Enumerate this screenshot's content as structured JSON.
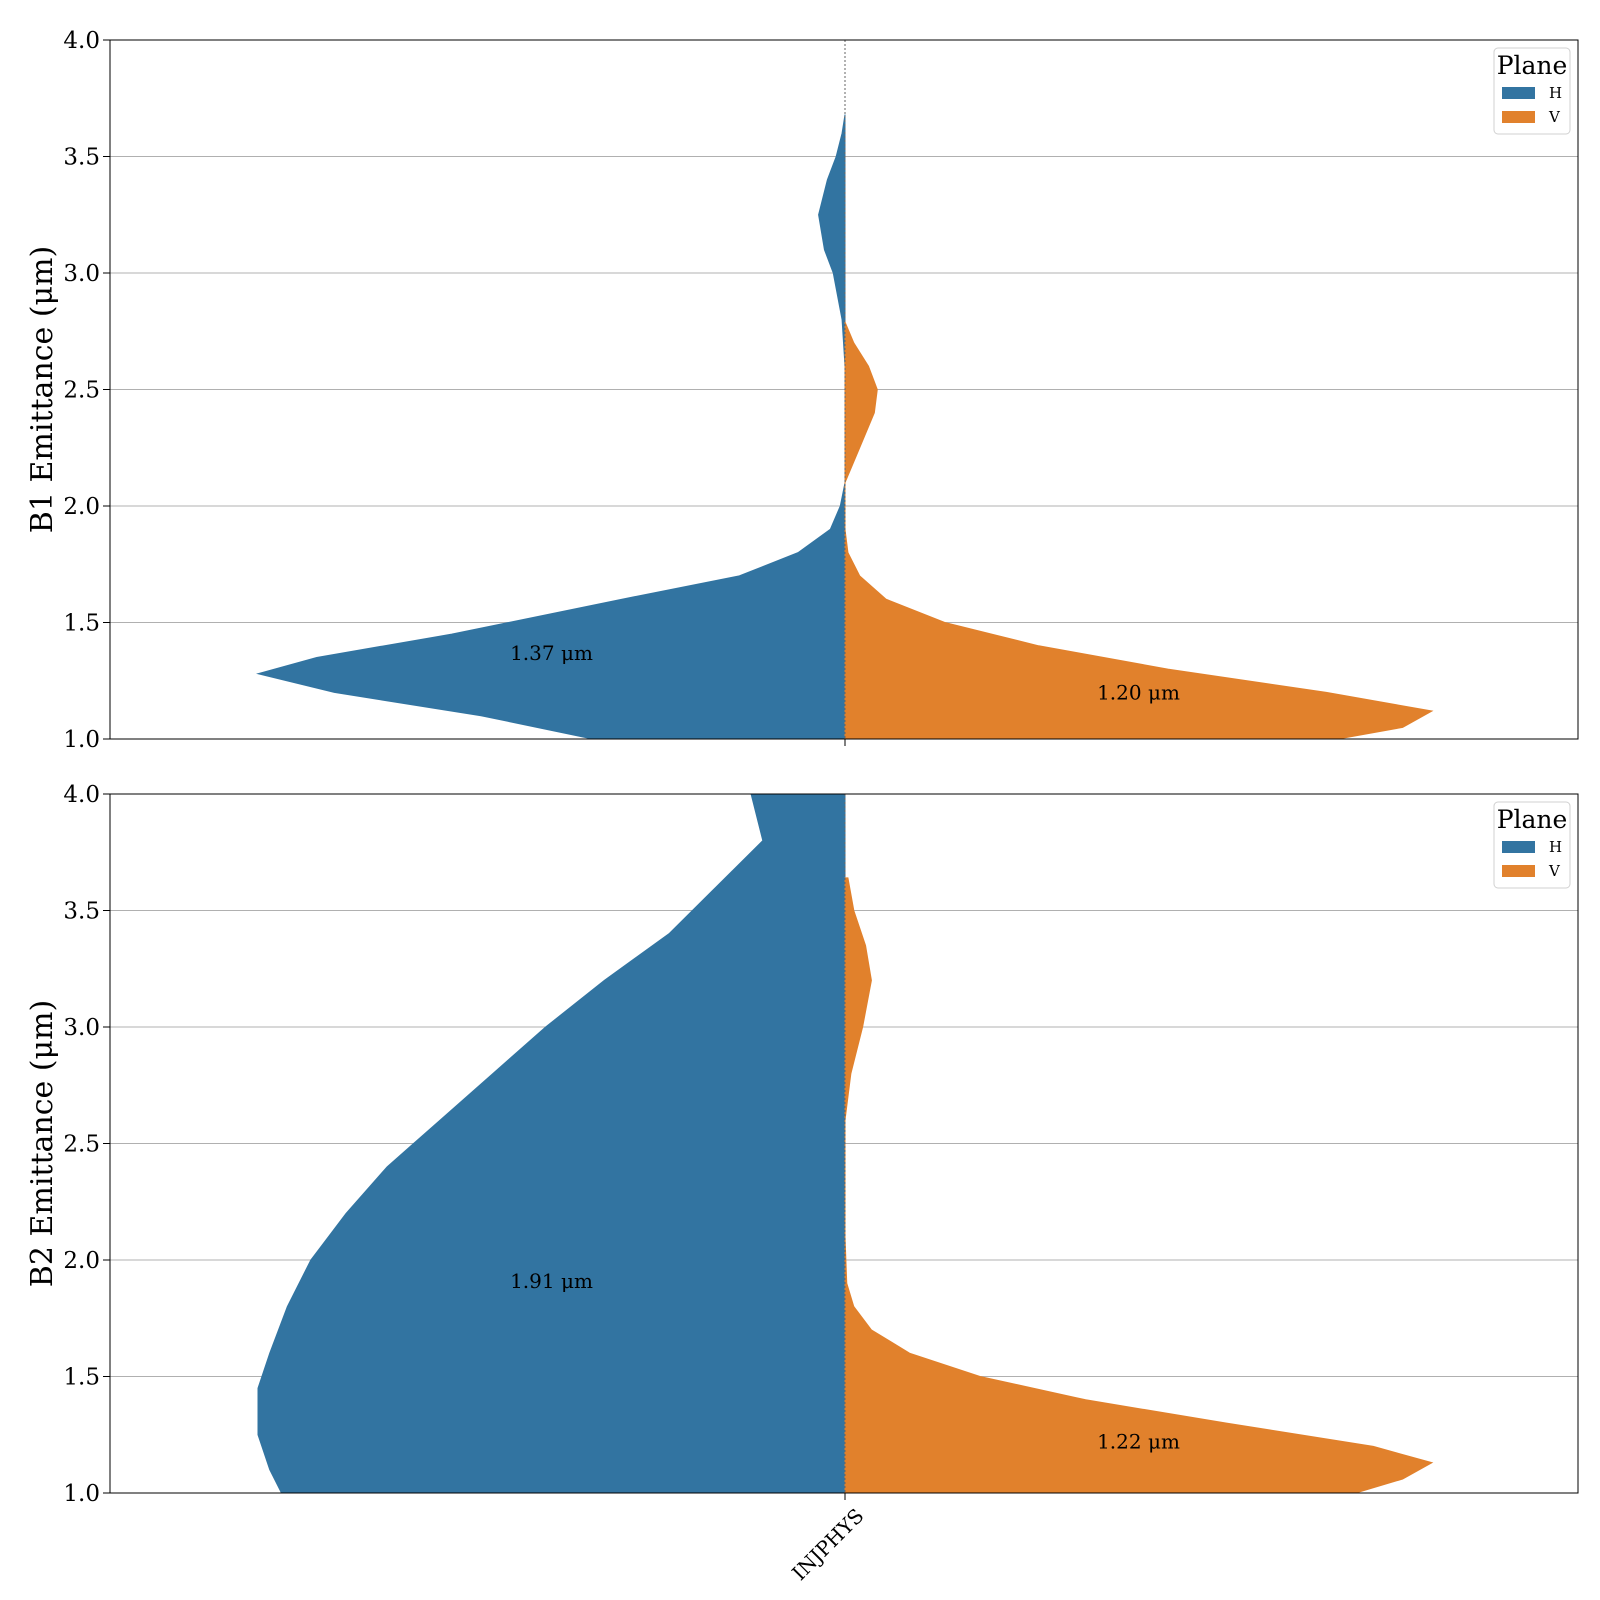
{
  "chart_data": [
    {
      "type": "violin",
      "ylabel": "B1 Emittance (μm)",
      "ylim": [
        1.0,
        4.0
      ],
      "yticks": [
        "1.0",
        "1.5",
        "2.0",
        "2.5",
        "3.0",
        "3.5",
        "4.0"
      ],
      "grid": "horizontal",
      "categories": [],
      "legend": {
        "title": "Plane",
        "placement": "top-right",
        "entries": [
          "H",
          "V"
        ]
      },
      "series": [
        {
          "name": "H",
          "color": "#3274a1",
          "side": "left",
          "annotation": "1.37 μm",
          "annotation_y": 1.37,
          "density": [
            [
              1.0,
              0.43
            ],
            [
              1.1,
              0.62
            ],
            [
              1.2,
              0.87
            ],
            [
              1.28,
              1.0
            ],
            [
              1.35,
              0.9
            ],
            [
              1.45,
              0.67
            ],
            [
              1.6,
              0.38
            ],
            [
              1.7,
              0.18
            ],
            [
              1.8,
              0.08
            ],
            [
              1.9,
              0.025
            ],
            [
              2.0,
              0.008
            ],
            [
              2.1,
              0.0
            ],
            [
              2.3,
              0.0
            ],
            [
              2.6,
              0.0
            ],
            [
              2.8,
              0.005
            ],
            [
              3.0,
              0.02
            ],
            [
              3.1,
              0.035
            ],
            [
              3.25,
              0.045
            ],
            [
              3.4,
              0.03
            ],
            [
              3.5,
              0.015
            ],
            [
              3.6,
              0.005
            ],
            [
              3.68,
              0.0
            ]
          ]
        },
        {
          "name": "V",
          "color": "#e1812c",
          "side": "right",
          "annotation": "1.20 μm",
          "annotation_y": 1.2,
          "density": [
            [
              1.0,
              0.84
            ],
            [
              1.05,
              0.95
            ],
            [
              1.12,
              1.0
            ],
            [
              1.2,
              0.82
            ],
            [
              1.3,
              0.55
            ],
            [
              1.4,
              0.33
            ],
            [
              1.5,
              0.17
            ],
            [
              1.6,
              0.07
            ],
            [
              1.7,
              0.025
            ],
            [
              1.8,
              0.005
            ],
            [
              1.9,
              0.0
            ],
            [
              2.1,
              0.0
            ],
            [
              2.25,
              0.025
            ],
            [
              2.4,
              0.05
            ],
            [
              2.5,
              0.055
            ],
            [
              2.6,
              0.04
            ],
            [
              2.7,
              0.015
            ],
            [
              2.79,
              0.0
            ]
          ]
        }
      ]
    },
    {
      "type": "violin",
      "ylabel": "B2 Emittance (μm)",
      "ylim": [
        1.0,
        4.0
      ],
      "yticks": [
        "1.0",
        "1.5",
        "2.0",
        "2.5",
        "3.0",
        "3.5",
        "4.0"
      ],
      "grid": "horizontal",
      "categories": [
        "INJPHYS"
      ],
      "legend": {
        "title": "Plane",
        "placement": "top-right",
        "entries": [
          "H",
          "V"
        ]
      },
      "series": [
        {
          "name": "H",
          "color": "#3274a1",
          "side": "left",
          "annotation": "1.91 μm",
          "annotation_y": 1.91,
          "density": [
            [
              1.0,
              0.96
            ],
            [
              1.1,
              0.98
            ],
            [
              1.25,
              1.0
            ],
            [
              1.45,
              1.0
            ],
            [
              1.6,
              0.98
            ],
            [
              1.8,
              0.95
            ],
            [
              2.0,
              0.91
            ],
            [
              2.2,
              0.85
            ],
            [
              2.4,
              0.78
            ],
            [
              2.6,
              0.69
            ],
            [
              2.8,
              0.6
            ],
            [
              3.0,
              0.51
            ],
            [
              3.2,
              0.41
            ],
            [
              3.4,
              0.3
            ],
            [
              3.6,
              0.22
            ],
            [
              3.8,
              0.14
            ],
            [
              4.0,
              0.16
            ]
          ]
        },
        {
          "name": "V",
          "color": "#e1812c",
          "side": "right",
          "annotation": "1.22 μm",
          "annotation_y": 1.22,
          "density": [
            [
              1.0,
              0.87
            ],
            [
              1.06,
              0.95
            ],
            [
              1.13,
              1.0
            ],
            [
              1.2,
              0.9
            ],
            [
              1.3,
              0.65
            ],
            [
              1.4,
              0.41
            ],
            [
              1.5,
              0.23
            ],
            [
              1.6,
              0.11
            ],
            [
              1.7,
              0.045
            ],
            [
              1.8,
              0.015
            ],
            [
              1.9,
              0.003
            ],
            [
              2.1,
              0.0
            ],
            [
              2.6,
              0.0
            ],
            [
              2.8,
              0.01
            ],
            [
              3.0,
              0.03
            ],
            [
              3.2,
              0.045
            ],
            [
              3.35,
              0.035
            ],
            [
              3.5,
              0.015
            ],
            [
              3.64,
              0.005
            ]
          ]
        }
      ]
    }
  ]
}
